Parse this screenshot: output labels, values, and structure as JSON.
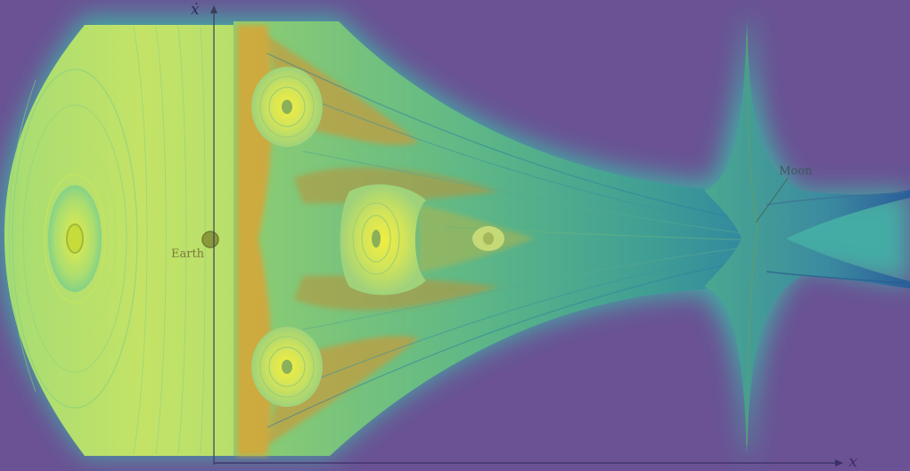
{
  "axes": {
    "vertical_label": "ẋ",
    "horizontal_label": "x"
  },
  "bodies": {
    "earth": "Earth",
    "moon": "Moon"
  },
  "colors": {
    "background": "#6a5294",
    "field_yellow": "#d8e85a",
    "field_green": "#72c98a",
    "field_teal": "#3aa8a0",
    "chaos_orange": "#d8a030",
    "flow_blue": "#2a6a9a"
  }
}
